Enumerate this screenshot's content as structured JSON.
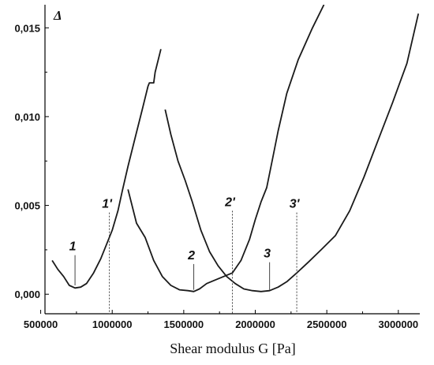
{
  "chart_data": {
    "type": "line",
    "xlabel": "Shear modulus G [Pa]",
    "ylabel": "",
    "corner_label": "Δ",
    "xlim": [
      530000,
      3150000
    ],
    "ylim": [
      -0.0011,
      0.0163
    ],
    "x_ticks": [
      500000,
      1000000,
      1500000,
      2000000,
      2500000,
      3000000
    ],
    "x_tick_labels": [
      "500000",
      "1000000",
      "1500000",
      "2000000",
      "2500000",
      "3000000"
    ],
    "y_ticks": [
      0.0,
      0.005,
      0.01,
      0.015
    ],
    "y_tick_labels": [
      "0,000",
      "0,005",
      "0,010",
      "0,015"
    ],
    "grid": false,
    "series": [
      {
        "x": [
          580000,
          620000,
          660000,
          700000,
          740000,
          780000,
          820000,
          870000,
          920000,
          960000,
          1000000,
          1040000,
          1070000,
          1110000,
          1160000,
          1210000,
          1250000,
          1260000,
          1290000,
          1300000,
          1340000
        ],
        "y": [
          0.0019,
          0.0014,
          0.001,
          0.0005,
          0.00035,
          0.0004,
          0.0006,
          0.0012,
          0.002,
          0.0028,
          0.0036,
          0.0047,
          0.0058,
          0.0072,
          0.0088,
          0.0104,
          0.0117,
          0.0119,
          0.0119,
          0.0125,
          0.0138
        ]
      },
      {
        "x": [
          1110000,
          1170000,
          1230000,
          1290000,
          1350000,
          1410000,
          1470000,
          1530000,
          1570000,
          1610000,
          1660000,
          1720000,
          1780000,
          1840000,
          1900000,
          1960000,
          2000000,
          2040000,
          2080000,
          2120000,
          2160000,
          2220000,
          2300000,
          2400000,
          2480000
        ],
        "y": [
          0.0059,
          0.004,
          0.0032,
          0.0019,
          0.001,
          0.0005,
          0.00025,
          0.0002,
          0.00015,
          0.0003,
          0.0006,
          0.0008,
          0.001,
          0.0012,
          0.0019,
          0.0031,
          0.0042,
          0.0052,
          0.006,
          0.0076,
          0.0092,
          0.0113,
          0.0132,
          0.015,
          0.0163
        ]
      },
      {
        "x": [
          1370000,
          1410000,
          1460000,
          1510000,
          1560000,
          1620000,
          1680000,
          1740000,
          1800000,
          1860000,
          1920000,
          1980000,
          2040000,
          2100000,
          2160000,
          2220000,
          2290000,
          2370000,
          2460000,
          2560000,
          2660000,
          2760000,
          2860000,
          2960000,
          3060000,
          3140000
        ],
        "y": [
          0.0104,
          0.009,
          0.0075,
          0.0064,
          0.0052,
          0.0036,
          0.0024,
          0.0016,
          0.001,
          0.0006,
          0.0003,
          0.0002,
          0.00015,
          0.0002,
          0.0004,
          0.0007,
          0.0012,
          0.0018,
          0.0025,
          0.0033,
          0.0047,
          0.0066,
          0.0087,
          0.0108,
          0.013,
          0.0158
        ]
      }
    ],
    "markers": [
      {
        "label": "1",
        "x": 740000,
        "y_top": 0.0022,
        "y_bottom": 0.0005,
        "style": "solid"
      },
      {
        "label": "1'",
        "x": 980000,
        "y_top": 0.0046,
        "y_bottom": -0.0011,
        "style": "dotted"
      },
      {
        "label": "2",
        "x": 1570000,
        "y_top": 0.0017,
        "y_bottom": 0.00025,
        "style": "solid"
      },
      {
        "label": "2'",
        "x": 1840000,
        "y_top": 0.0047,
        "y_bottom": -0.0011,
        "style": "dotted"
      },
      {
        "label": "3",
        "x": 2100000,
        "y_top": 0.0018,
        "y_bottom": 0.00025,
        "style": "solid"
      },
      {
        "label": "3'",
        "x": 2290000,
        "y_top": 0.0046,
        "y_bottom": -0.0011,
        "style": "dotted"
      }
    ]
  }
}
